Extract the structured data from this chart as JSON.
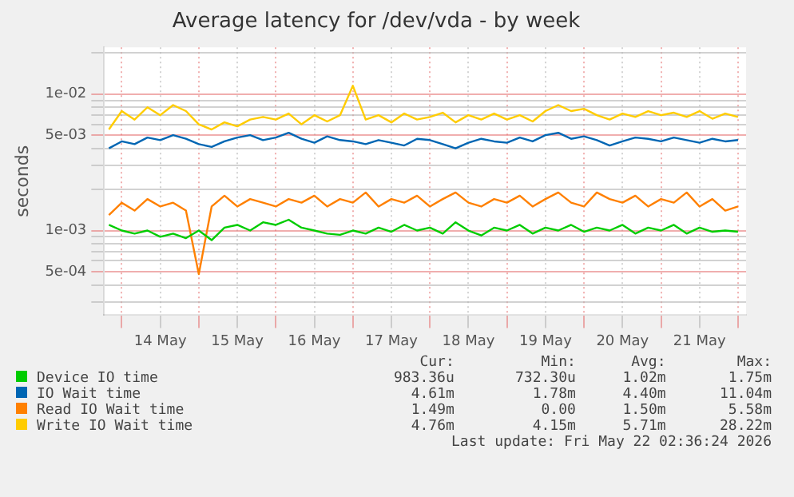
{
  "chart_data": {
    "type": "line",
    "title": "Average latency for /dev/vda - by week",
    "ylabel": "seconds",
    "log": "y",
    "grid": true,
    "legend": "bottom",
    "marker": "none",
    "line_style": "solid",
    "x": [
      "2026-05-13T20:00",
      "2026-05-14T00:00",
      "2026-05-14T04:00",
      "2026-05-14T08:00",
      "2026-05-14T12:00",
      "2026-05-14T16:00",
      "2026-05-14T20:00",
      "2026-05-15T00:00",
      "2026-05-15T04:00",
      "2026-05-15T08:00",
      "2026-05-15T12:00",
      "2026-05-15T16:00",
      "2026-05-15T20:00",
      "2026-05-16T00:00",
      "2026-05-16T04:00",
      "2026-05-16T08:00",
      "2026-05-16T12:00",
      "2026-05-16T16:00",
      "2026-05-16T20:00",
      "2026-05-17T00:00",
      "2026-05-17T04:00",
      "2026-05-17T08:00",
      "2026-05-17T12:00",
      "2026-05-17T16:00",
      "2026-05-17T20:00",
      "2026-05-18T00:00",
      "2026-05-18T04:00",
      "2026-05-18T08:00",
      "2026-05-18T12:00",
      "2026-05-18T16:00",
      "2026-05-18T20:00",
      "2026-05-19T00:00",
      "2026-05-19T04:00",
      "2026-05-19T08:00",
      "2026-05-19T12:00",
      "2026-05-19T16:00",
      "2026-05-19T20:00",
      "2026-05-20T00:00",
      "2026-05-20T04:00",
      "2026-05-20T08:00",
      "2026-05-20T12:00",
      "2026-05-20T16:00",
      "2026-05-20T20:00",
      "2026-05-21T00:00",
      "2026-05-21T04:00",
      "2026-05-21T08:00",
      "2026-05-21T12:00",
      "2026-05-21T16:00",
      "2026-05-21T20:00",
      "2026-05-22T00:00"
    ],
    "xlim": [
      "2026-05-13T18:30",
      "2026-05-22T02:30"
    ],
    "xticks": [
      {
        "value": "2026-05-14T00:00",
        "label": null
      },
      {
        "value": "2026-05-14T12:00",
        "label": "14 May"
      },
      {
        "value": "2026-05-15T00:00",
        "label": null
      },
      {
        "value": "2026-05-15T12:00",
        "label": "15 May"
      },
      {
        "value": "2026-05-16T00:00",
        "label": null
      },
      {
        "value": "2026-05-16T12:00",
        "label": "16 May"
      },
      {
        "value": "2026-05-17T00:00",
        "label": null
      },
      {
        "value": "2026-05-17T12:00",
        "label": "17 May"
      },
      {
        "value": "2026-05-18T00:00",
        "label": null
      },
      {
        "value": "2026-05-18T12:00",
        "label": "18 May"
      },
      {
        "value": "2026-05-19T00:00",
        "label": null
      },
      {
        "value": "2026-05-19T12:00",
        "label": "19 May"
      },
      {
        "value": "2026-05-20T00:00",
        "label": null
      },
      {
        "value": "2026-05-20T12:00",
        "label": "20 May"
      },
      {
        "value": "2026-05-21T00:00",
        "label": null
      },
      {
        "value": "2026-05-21T12:00",
        "label": "21 May"
      },
      {
        "value": "2026-05-22T00:00",
        "label": null
      }
    ],
    "ylim": [
      0.00024,
      0.022
    ],
    "yticks": [
      {
        "value": 0.0003,
        "label": null
      },
      {
        "value": 0.0004,
        "label": null
      },
      {
        "value": 0.0005,
        "label": "5e-04"
      },
      {
        "value": 0.0006,
        "label": null
      },
      {
        "value": 0.0007,
        "label": null
      },
      {
        "value": 0.0008,
        "label": null
      },
      {
        "value": 0.0009,
        "label": null
      },
      {
        "value": 0.001,
        "label": "1e-03"
      },
      {
        "value": 0.002,
        "label": null
      },
      {
        "value": 0.003,
        "label": null
      },
      {
        "value": 0.004,
        "label": null
      },
      {
        "value": 0.005,
        "label": "5e-03"
      },
      {
        "value": 0.006,
        "label": null
      },
      {
        "value": 0.007,
        "label": null
      },
      {
        "value": 0.008,
        "label": null
      },
      {
        "value": 0.009,
        "label": null
      },
      {
        "value": 0.01,
        "label": "1e-02"
      },
      {
        "value": 0.02,
        "label": null
      }
    ],
    "series": [
      {
        "name": "Device IO time",
        "color": "#00cc00",
        "values": [
          0.0011,
          0.001,
          0.00095,
          0.001,
          0.0009,
          0.00095,
          0.00088,
          0.001,
          0.00085,
          0.00105,
          0.0011,
          0.001,
          0.00115,
          0.0011,
          0.0012,
          0.00105,
          0.001,
          0.00095,
          0.00093,
          0.001,
          0.00095,
          0.00105,
          0.00098,
          0.0011,
          0.001,
          0.00105,
          0.00095,
          0.00115,
          0.001,
          0.00092,
          0.00105,
          0.001,
          0.0011,
          0.00095,
          0.00105,
          0.001,
          0.0011,
          0.00098,
          0.00105,
          0.001,
          0.0011,
          0.00095,
          0.00105,
          0.001,
          0.0011,
          0.00095,
          0.00105,
          0.00098,
          0.001,
          0.00098
        ]
      },
      {
        "name": "IO Wait time",
        "color": "#0066b3",
        "values": [
          0.004,
          0.0045,
          0.0043,
          0.0048,
          0.0046,
          0.005,
          0.0047,
          0.0043,
          0.0041,
          0.0045,
          0.0048,
          0.005,
          0.0046,
          0.0048,
          0.0052,
          0.0047,
          0.0044,
          0.0049,
          0.0046,
          0.0045,
          0.0043,
          0.0046,
          0.0044,
          0.0042,
          0.0047,
          0.0046,
          0.0043,
          0.004,
          0.0044,
          0.0047,
          0.0045,
          0.0044,
          0.0048,
          0.0045,
          0.005,
          0.0052,
          0.0047,
          0.0049,
          0.0046,
          0.0042,
          0.0045,
          0.0048,
          0.0047,
          0.0045,
          0.0048,
          0.0046,
          0.0044,
          0.0047,
          0.0045,
          0.0046
        ]
      },
      {
        "name": "Read IO Wait time",
        "color": "#ff8000",
        "values": [
          0.0013,
          0.0016,
          0.0014,
          0.0017,
          0.0015,
          0.0016,
          0.0014,
          0.00048,
          0.0015,
          0.0018,
          0.0015,
          0.0017,
          0.0016,
          0.0015,
          0.0017,
          0.0016,
          0.0018,
          0.0015,
          0.0017,
          0.0016,
          0.0019,
          0.0015,
          0.0017,
          0.0016,
          0.0018,
          0.0015,
          0.0017,
          0.0019,
          0.0016,
          0.0015,
          0.0017,
          0.0016,
          0.0018,
          0.0015,
          0.0017,
          0.0019,
          0.0016,
          0.0015,
          0.0019,
          0.0017,
          0.0016,
          0.0018,
          0.0015,
          0.0017,
          0.0016,
          0.0019,
          0.0015,
          0.0017,
          0.0014,
          0.0015
        ]
      },
      {
        "name": "Write IO Wait time",
        "color": "#ffcc00",
        "values": [
          0.0055,
          0.0075,
          0.0065,
          0.008,
          0.007,
          0.0083,
          0.0075,
          0.006,
          0.0055,
          0.0062,
          0.0058,
          0.0065,
          0.0068,
          0.0065,
          0.0072,
          0.006,
          0.007,
          0.0063,
          0.007,
          0.0115,
          0.0065,
          0.007,
          0.0062,
          0.0072,
          0.0065,
          0.0068,
          0.0073,
          0.0062,
          0.007,
          0.0065,
          0.0072,
          0.0065,
          0.007,
          0.0063,
          0.0075,
          0.0083,
          0.0075,
          0.0078,
          0.007,
          0.0065,
          0.0072,
          0.0068,
          0.0075,
          0.007,
          0.0073,
          0.0068,
          0.0075,
          0.0066,
          0.0072,
          0.0068
        ]
      }
    ],
    "annotations": [
      "Cur:",
      "Min:",
      "Avg:",
      "Max:",
      "983.36u",
      "732.30u",
      "1.02m",
      "1.75m",
      "4.61m",
      "1.78m",
      "4.40m",
      "11.04m",
      "1.49m",
      "0.00",
      "1.50m",
      "5.58m",
      "4.76m",
      "4.15m",
      "5.71m",
      "28.22m",
      "Last update: Fri May 22 02:36:24 2026"
    ]
  }
}
